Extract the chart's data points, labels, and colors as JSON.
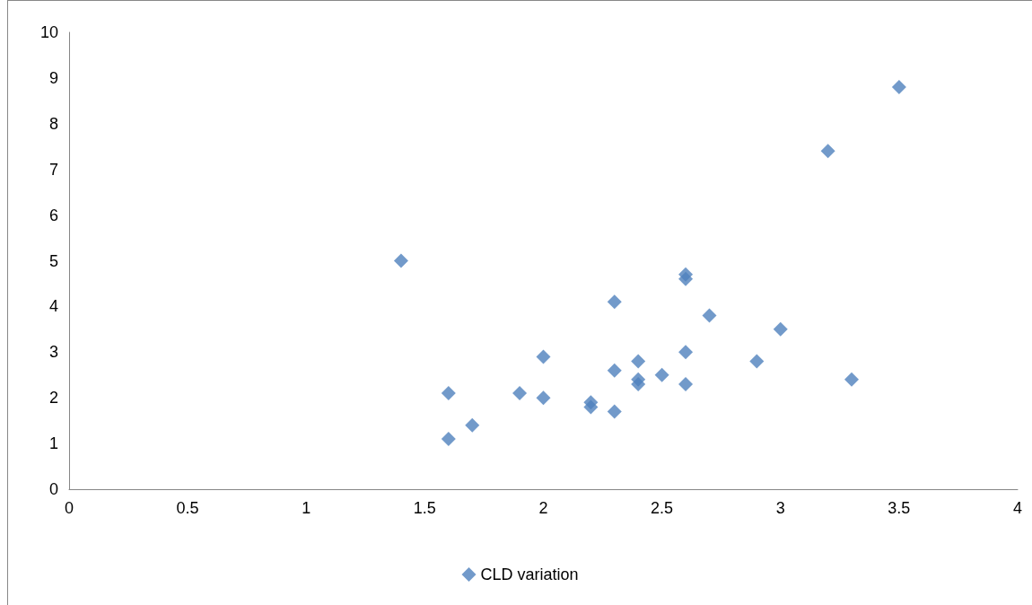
{
  "chart_data": {
    "type": "scatter",
    "marker": "diamond",
    "grid": false,
    "legend": "bottom",
    "xlim": [
      0,
      4
    ],
    "xticks": [
      0,
      0.5,
      1,
      1.5,
      2,
      2.5,
      3,
      3.5,
      4
    ],
    "ylim": [
      0,
      10
    ],
    "yticks": [
      0,
      1,
      2,
      3,
      4,
      5,
      6,
      7,
      8,
      9,
      10
    ],
    "x": [
      1.4,
      1.6,
      1.6,
      1.7,
      1.9,
      2.0,
      2.0,
      2.2,
      2.2,
      2.3,
      2.3,
      2.3,
      2.4,
      2.4,
      2.4,
      2.5,
      2.6,
      2.6,
      2.6,
      2.6,
      2.7,
      2.9,
      3.0,
      3.2,
      3.3,
      3.5
    ],
    "series": [
      {
        "name": "CLD variation",
        "color": "#4f81bd",
        "values": [
          5.0,
          2.1,
          1.1,
          1.4,
          2.1,
          2.9,
          2.0,
          1.9,
          1.8,
          4.1,
          2.6,
          1.7,
          2.8,
          2.4,
          2.3,
          2.5,
          4.7,
          4.6,
          3.0,
          2.3,
          3.8,
          2.8,
          3.5,
          7.4,
          2.4,
          8.8
        ]
      }
    ]
  }
}
